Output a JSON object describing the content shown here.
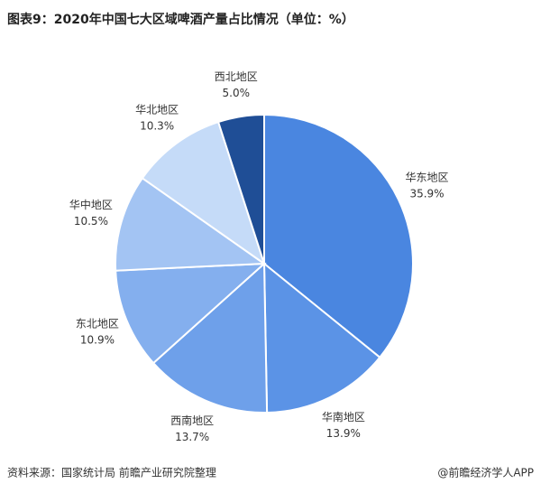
{
  "chart_data": {
    "type": "pie",
    "title": "图表9：2020年中国七大区域啤酒产量占比情况（单位：%）",
    "categories": [
      "华东地区",
      "华南地区",
      "西南地区",
      "东北地区",
      "华中地区",
      "华北地区",
      "西北地区"
    ],
    "values": [
      35.9,
      13.9,
      13.7,
      10.9,
      10.5,
      10.3,
      5.0
    ],
    "value_labels": [
      "35.9%",
      "13.9%",
      "13.7%",
      "10.9%",
      "10.5%",
      "10.3%",
      "5.0%"
    ],
    "colors": [
      "#4a86e0",
      "#5b93e6",
      "#6ea0ea",
      "#84afee",
      "#a3c4f3",
      "#c5dbf8",
      "#1f4e96"
    ],
    "source": "资料来源：国家统计局 前瞻产业研究院整理",
    "credit": "@前瞻经济学人APP"
  }
}
